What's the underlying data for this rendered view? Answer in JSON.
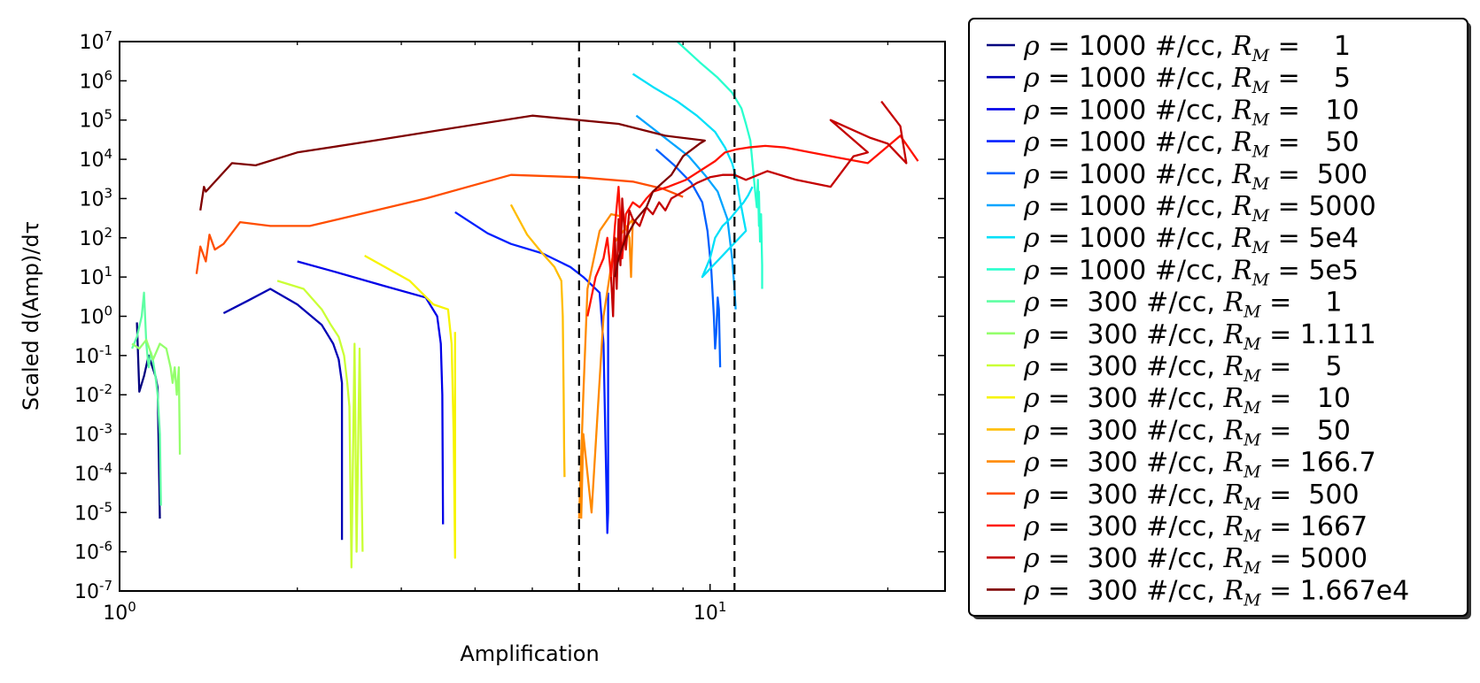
{
  "chart_data": {
    "type": "line",
    "xlabel": "Amplification",
    "ylabel": "Scaled d(Amp)/dτ",
    "xscale": "log",
    "yscale": "log",
    "xlim": [
      1,
      25
    ],
    "ylim": [
      1e-07,
      10000000.0
    ],
    "x_ticks": [
      {
        "value": 1,
        "base": "10",
        "exp": "0"
      },
      {
        "value": 10,
        "base": "10",
        "exp": "1"
      }
    ],
    "y_ticks": [
      {
        "value": 10000000.0,
        "base": "10",
        "exp": "7"
      },
      {
        "value": 1000000.0,
        "base": "10",
        "exp": "6"
      },
      {
        "value": 100000.0,
        "base": "10",
        "exp": "5"
      },
      {
        "value": 10000.0,
        "base": "10",
        "exp": "4"
      },
      {
        "value": 1000.0,
        "base": "10",
        "exp": "3"
      },
      {
        "value": 100.0,
        "base": "10",
        "exp": "2"
      },
      {
        "value": 10.0,
        "base": "10",
        "exp": "1"
      },
      {
        "value": 1.0,
        "base": "10",
        "exp": "0"
      },
      {
        "value": 0.1,
        "base": "10",
        "exp": "-1"
      },
      {
        "value": 0.01,
        "base": "10",
        "exp": "-2"
      },
      {
        "value": 0.001,
        "base": "10",
        "exp": "-3"
      },
      {
        "value": 0.0001,
        "base": "10",
        "exp": "-4"
      },
      {
        "value": 1e-05,
        "base": "10",
        "exp": "-5"
      },
      {
        "value": 1e-06,
        "base": "10",
        "exp": "-6"
      },
      {
        "value": 1e-07,
        "base": "10",
        "exp": "-7"
      }
    ],
    "vlines": [
      6.0,
      11.0
    ],
    "legend_position": "outside-right",
    "series": [
      {
        "name": "ρ = 1000 #/cc, R_M =    1",
        "color": "#00007f",
        "x": [
          1.07,
          1.08,
          1.1,
          1.12,
          1.15,
          1.16,
          1.17
        ],
        "y": [
          0.7,
          0.012,
          0.03,
          0.1,
          0.03,
          0.015,
          7e-06
        ]
      },
      {
        "name": "ρ = 1000 #/cc, R_M =    5",
        "color": "#0000b4",
        "x": [
          1.5,
          1.65,
          1.8,
          2.0,
          2.2,
          2.3,
          2.35,
          2.38,
          2.38
        ],
        "y": [
          1.2,
          2.5,
          5,
          2.0,
          0.6,
          0.2,
          0.08,
          0.02,
          2e-06
        ]
      },
      {
        "name": "ρ = 1000 #/cc, R_M =   10",
        "color": "#0000e8",
        "x": [
          2.0,
          2.3,
          2.8,
          3.3,
          3.45,
          3.5,
          3.52,
          3.53
        ],
        "y": [
          25,
          14,
          6,
          3,
          1.0,
          0.2,
          0.01,
          5e-06
        ]
      },
      {
        "name": "ρ = 1000 #/cc, R_M =   50",
        "color": "#0020ff",
        "x": [
          3.7,
          4.2,
          4.6,
          5.2,
          5.8,
          6.1,
          6.5,
          6.6,
          6.7,
          6.72,
          6.72,
          6.72
        ],
        "y": [
          450,
          130,
          70,
          40,
          18,
          10,
          4,
          0.2,
          3e-06,
          1e-05,
          2,
          4
        ]
      },
      {
        "name": "ρ = 1000 #/cc, R_M =  500",
        "color": "#0060ff",
        "x": [
          8.1,
          8.7,
          9.3,
          9.7,
          9.9,
          10.05,
          10.15,
          10.2,
          10.25,
          10.3,
          10.35,
          10.4
        ],
        "y": [
          18000.0,
          7000,
          2500,
          800,
          150,
          15,
          1,
          0.15,
          0.4,
          3,
          1.5,
          0.05
        ]
      },
      {
        "name": "ρ = 1000 #/cc, R_M = 5000",
        "color": "#00a4ff",
        "x": [
          7.5,
          8.3,
          9.2,
          9.8,
          10.3,
          10.7,
          10.9,
          11.0,
          11.05
        ],
        "y": [
          130000.0,
          40000.0,
          12000.0,
          4000,
          1500,
          300,
          30,
          5,
          1.5
        ]
      },
      {
        "name": "ρ = 1000 #/cc, R_M = 5e4",
        "color": "#00e0f8",
        "x": [
          7.4,
          8.0,
          8.8,
          9.5,
          10.2,
          10.6,
          10.9,
          11.1,
          11.2,
          11.3,
          11.4,
          11.5,
          9.7,
          10.0,
          10.2,
          10.5,
          10.8,
          11.1,
          11.4,
          11.6,
          11.8
        ],
        "y": [
          1500000.0,
          700000.0,
          300000.0,
          130000.0,
          50000.0,
          20000.0,
          8000,
          3000,
          1200,
          600,
          300,
          150,
          10,
          30,
          100,
          200,
          300,
          500,
          800,
          1200,
          2000
        ]
      },
      {
        "name": "ρ = 1000 #/cc, R_M = 5e5",
        "color": "#29ffce",
        "x": [
          8.8,
          9.6,
          10.3,
          10.9,
          11.3,
          11.5,
          11.7,
          11.8,
          11.9,
          12.0,
          12.05,
          12.1,
          12.1,
          12.15,
          12.2,
          12.25,
          12.25
        ],
        "y": [
          10000000.0,
          3000000.0,
          1200000.0,
          500000.0,
          200000.0,
          80000.0,
          30000.0,
          8000,
          2000,
          600,
          3000,
          200,
          1500,
          80,
          400,
          20,
          5
        ]
      },
      {
        "name": "ρ =  300 #/cc, R_M =    1",
        "color": "#5effa3",
        "x": [
          1.05,
          1.07,
          1.09,
          1.1,
          1.11,
          1.12,
          1.13,
          1.14,
          1.15,
          1.16,
          1.17,
          1.175
        ],
        "y": [
          0.15,
          0.3,
          1,
          4,
          0.2,
          0.05,
          0.12,
          0.07,
          0.03,
          0.01,
          0.001,
          1.5e-05
        ]
      },
      {
        "name": "ρ =  300 #/cc, R_M = 1.111",
        "color": "#94ff6c",
        "x": [
          1.05,
          1.08,
          1.11,
          1.14,
          1.17,
          1.2,
          1.22,
          1.23,
          1.24,
          1.25,
          1.26,
          1.265
        ],
        "y": [
          0.2,
          0.15,
          0.25,
          0.08,
          0.2,
          0.15,
          0.05,
          0.02,
          0.05,
          0.01,
          0.05,
          0.0003
        ]
      },
      {
        "name": "ρ =  300 #/cc, R_M =    5",
        "color": "#caff36",
        "x": [
          1.85,
          2.05,
          2.2,
          2.28,
          2.35,
          2.4,
          2.43,
          2.45,
          2.47,
          2.5,
          2.52,
          2.55,
          2.58
        ],
        "y": [
          8,
          5,
          1.5,
          0.6,
          0.3,
          0.1,
          0.02,
          0.005,
          4e-07,
          0.2,
          1e-06,
          0.15,
          1e-06
        ]
      },
      {
        "name": "ρ =  300 #/cc, R_M =   10",
        "color": "#f7f400",
        "x": [
          2.6,
          3.1,
          3.4,
          3.6,
          3.65,
          3.68,
          3.7,
          3.7
        ],
        "y": [
          35,
          8,
          2,
          1.5,
          0.2,
          0.001,
          7e-07,
          0.4
        ]
      },
      {
        "name": "ρ =  300 #/cc, R_M =   50",
        "color": "#ffbd00",
        "x": [
          4.6,
          4.9,
          5.2,
          5.45,
          5.6,
          5.63,
          5.65,
          5.66,
          5.67
        ],
        "y": [
          700,
          120,
          40,
          18,
          8,
          1,
          0.01,
          0.0005,
          8e-05
        ]
      },
      {
        "name": "ρ =  300 #/cc, R_M = 166.7",
        "color": "#ff8a00",
        "x": [
          6.0,
          6.1,
          6.2,
          6.5,
          6.8,
          7.1,
          7.3,
          7.35,
          7.4,
          6.9,
          6.6,
          6.3,
          6.1,
          6.05
        ],
        "y": [
          7e-06,
          0.01,
          5,
          150,
          400,
          350,
          100,
          10,
          300,
          80,
          1,
          1e-05,
          0.001,
          7e-06
        ]
      },
      {
        "name": "ρ =  300 #/cc, R_M =  500",
        "color": "#ff4e00",
        "x": [
          1.35,
          1.37,
          1.4,
          1.42,
          1.45,
          1.5,
          1.6,
          1.8,
          2.1,
          3.3,
          4.6,
          6.0,
          7.4,
          8.3,
          9.0
        ],
        "y": [
          12,
          60,
          25,
          120,
          50,
          70,
          250,
          200,
          200,
          1000,
          4000,
          3500,
          2700,
          1800,
          1100
        ]
      },
      {
        "name": "ρ =  300 #/cc, R_M = 1667",
        "color": "#ff1200",
        "x": [
          6.2,
          6.4,
          6.6,
          6.7,
          6.8,
          6.9,
          7.0,
          7.1,
          7.2,
          7.4,
          7.6,
          7.8,
          8.0,
          8.5,
          9.1,
          9.6,
          10.2,
          10.6,
          11.1,
          11.6,
          12.4,
          13.4,
          14.8,
          16.5,
          18.5,
          21.0,
          22.5
        ],
        "y": [
          1,
          10,
          30,
          100,
          10,
          200,
          2000,
          30,
          400,
          800,
          600,
          1000,
          1500,
          2000,
          3000,
          5000,
          9000,
          15000.0,
          18000.0,
          20000.0,
          22000.0,
          20000.0,
          15000.0,
          11000.0,
          8000,
          40000.0,
          9000
        ]
      },
      {
        "name": "ρ =  300 #/cc, R_M = 5000",
        "color": "#c40000",
        "x": [
          6.8,
          6.85,
          6.9,
          6.95,
          7.0,
          7.05,
          7.1,
          7.2,
          7.3,
          7.4,
          7.6,
          7.8,
          8.0,
          8.2,
          8.4,
          8.6,
          9.0,
          9.5,
          10.0,
          10.5,
          11.0,
          11.5,
          12.5,
          14.0,
          16.0,
          17.5,
          18.5,
          16.0,
          18.7,
          20.0,
          21.5,
          21.0,
          19.5
        ],
        "y": [
          10,
          1,
          100,
          5,
          300,
          20,
          1000,
          50,
          500,
          300,
          200,
          600,
          400,
          800,
          500,
          1000,
          1500,
          2500,
          3500,
          4000,
          4000,
          3000,
          5000,
          3000,
          2000,
          12000.0,
          15000.0,
          100000.0,
          35000.0,
          25000.0,
          8000,
          70000.0,
          300000.0
        ]
      },
      {
        "name": "ρ =  300 #/cc, R_M = 1.667e4",
        "color": "#7f0000",
        "x": [
          1.37,
          1.39,
          1.4,
          1.55,
          1.7,
          2.0,
          2.7,
          3.6,
          5.0,
          7.0,
          8.4,
          9.8,
          9.6,
          9.0,
          8.6,
          8.3,
          8.0,
          7.8,
          7.5,
          7.2,
          7.0,
          6.9
        ],
        "y": [
          500,
          2000,
          1500,
          8000,
          7000,
          15000.0,
          30000.0,
          60000.0,
          130000.0,
          80000.0,
          40000.0,
          30000.0,
          25000.0,
          12000.0,
          4000,
          2500,
          1500,
          600,
          300,
          100,
          30,
          10
        ]
      }
    ]
  }
}
